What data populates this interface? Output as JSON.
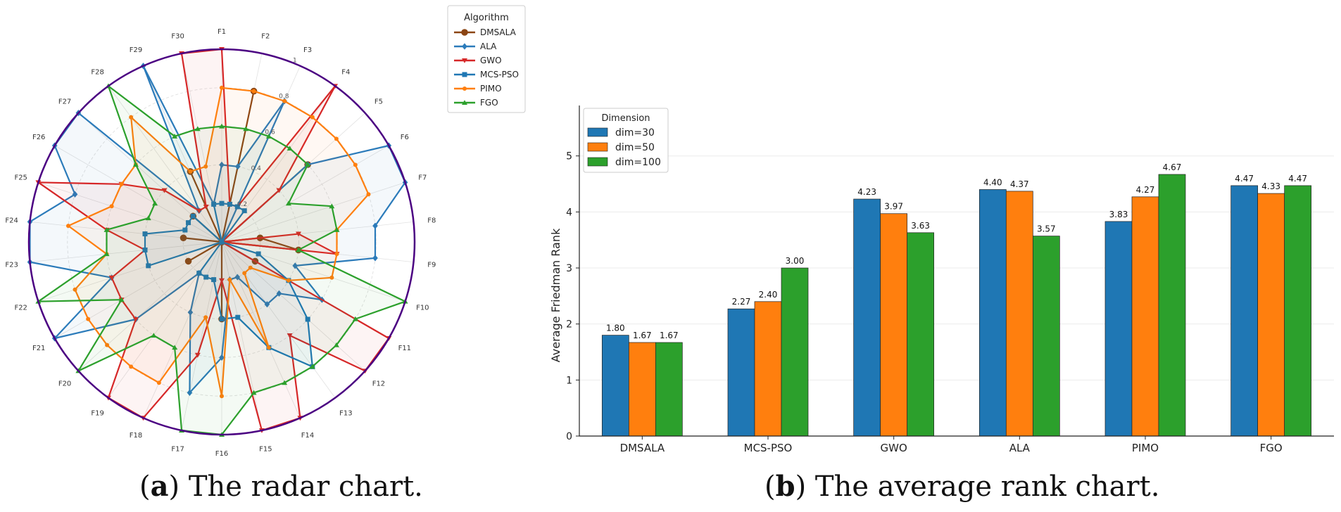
{
  "colors": {
    "DMSALA": "#8b4513",
    "ALA": "#2b7bba",
    "GWO": "#d62728",
    "MCS-PSO": "#1f77b4",
    "PIMO": "#ff7f0e",
    "FGO": "#2ca02c",
    "rim": "#4b0082",
    "bar_dim30": "#1f77b4",
    "bar_dim50": "#ff7f0e",
    "bar_dim100": "#2ca02c"
  },
  "captions": {
    "a_label": "a",
    "a_text": " The radar chart.",
    "b_label": "b",
    "b_text": " The average rank chart."
  },
  "chart_data": [
    {
      "type": "radar",
      "axes": [
        "F1",
        "F2",
        "F3",
        "F4",
        "F5",
        "F6",
        "F7",
        "F8",
        "F9",
        "F10",
        "F11",
        "F12",
        "F13",
        "F14",
        "F15",
        "F16",
        "F17",
        "F18",
        "F19",
        "F20",
        "F21",
        "F22",
        "F23",
        "F24",
        "F25",
        "F26",
        "F27",
        "F28",
        "F29",
        "F30"
      ],
      "radial_ticks": [
        "0.2",
        "0.4",
        "0.6",
        "0.8",
        "1"
      ],
      "rlim": [
        0,
        1
      ],
      "legend": {
        "title": "Algorithm",
        "placement": "top-right"
      },
      "series": [
        {
          "name": "DMSALA",
          "marker": "circle",
          "values": [
            0.0,
            0.8,
            0.0,
            0.0,
            0.6,
            0.0,
            0.0,
            0.2,
            0.4,
            0.0,
            0.2,
            0.0,
            0.0,
            0.0,
            0.0,
            0.4,
            0.0,
            0.0,
            0.0,
            0.0,
            0.2,
            0.0,
            0.0,
            0.2,
            0.0,
            0.0,
            0.2,
            0.0,
            0.4,
            0.0
          ]
        },
        {
          "name": "ALA",
          "marker": "diamond",
          "values": [
            0.4,
            0.4,
            0.8,
            0.0,
            0.6,
            1.0,
            1.0,
            0.8,
            0.8,
            0.4,
            0.6,
            0.4,
            0.4,
            0.2,
            0.2,
            0.6,
            0.8,
            0.4,
            0.2,
            0.6,
            1.0,
            0.6,
            1.0,
            1.0,
            0.8,
            1.0,
            1.0,
            0.2,
            1.0,
            0.2
          ]
        },
        {
          "name": "GWO",
          "marker": "triangle-down",
          "values": [
            1.0,
            0.2,
            0.2,
            1.0,
            0.4,
            0.0,
            0.0,
            0.4,
            0.6,
            0.0,
            1.0,
            1.0,
            0.6,
            1.0,
            1.0,
            0.2,
            0.6,
            1.0,
            1.0,
            0.6,
            0.6,
            0.6,
            0.4,
            0.6,
            1.0,
            0.6,
            0.4,
            0.2,
            0.2,
            1.0
          ]
        },
        {
          "name": "MCS-PSO",
          "marker": "square",
          "values": [
            0.2,
            0.2,
            0.2,
            0.2,
            0.0,
            0.0,
            0.0,
            0.0,
            0.0,
            0.2,
            0.4,
            0.6,
            0.8,
            0.6,
            0.4,
            0.4,
            0.2,
            0.2,
            0.2,
            0.0,
            0.0,
            0.4,
            0.4,
            0.4,
            0.2,
            0.2,
            0.2,
            0.0,
            0.0,
            0.2
          ]
        },
        {
          "name": "PIMO",
          "marker": "circle-small",
          "values": [
            0.8,
            0.8,
            0.8,
            0.8,
            0.8,
            0.8,
            0.8,
            0.6,
            0.6,
            0.6,
            0.4,
            0.2,
            0.2,
            0.6,
            0.2,
            0.8,
            0.4,
            0.8,
            0.8,
            0.8,
            0.8,
            0.8,
            0.6,
            0.8,
            0.6,
            0.6,
            0.6,
            0.8,
            0.4,
            0.4
          ]
        },
        {
          "name": "FGO",
          "marker": "triangle-up",
          "values": [
            0.6,
            0.6,
            0.6,
            0.6,
            0.6,
            0.4,
            0.6,
            0.6,
            0.4,
            1.0,
            0.8,
            0.8,
            0.8,
            0.8,
            0.8,
            1.0,
            1.0,
            0.6,
            0.6,
            1.0,
            0.6,
            1.0,
            0.6,
            0.6,
            0.4,
            0.4,
            0.6,
            1.0,
            0.6,
            0.6
          ]
        }
      ]
    },
    {
      "type": "bar",
      "categories": [
        "DMSALA",
        "MCS-PSO",
        "GWO",
        "ALA",
        "PIMO",
        "FGO"
      ],
      "ylabel": "Average Friedman Rank",
      "xlabel": "",
      "ylim": [
        0,
        5.9
      ],
      "yticks": [
        0,
        1,
        2,
        3,
        4,
        5
      ],
      "grid": "y",
      "legend": {
        "title": "Dimension",
        "placement": "top-left"
      },
      "series": [
        {
          "name": "dim=30",
          "values": [
            1.8,
            2.27,
            4.23,
            4.4,
            3.83,
            4.47
          ],
          "labels": [
            "1.80",
            "2.27",
            "4.23",
            "4.40",
            "3.83",
            "4.47"
          ]
        },
        {
          "name": "dim=50",
          "values": [
            1.67,
            2.4,
            3.97,
            4.37,
            4.27,
            4.33
          ],
          "labels": [
            "1.67",
            "2.40",
            "3.97",
            "4.37",
            "4.27",
            "4.33"
          ]
        },
        {
          "name": "dim=100",
          "values": [
            1.67,
            3.0,
            3.63,
            3.57,
            4.67,
            4.47
          ],
          "labels": [
            "1.67",
            "3.00",
            "3.63",
            "3.57",
            "4.67",
            "4.47"
          ]
        }
      ]
    }
  ]
}
